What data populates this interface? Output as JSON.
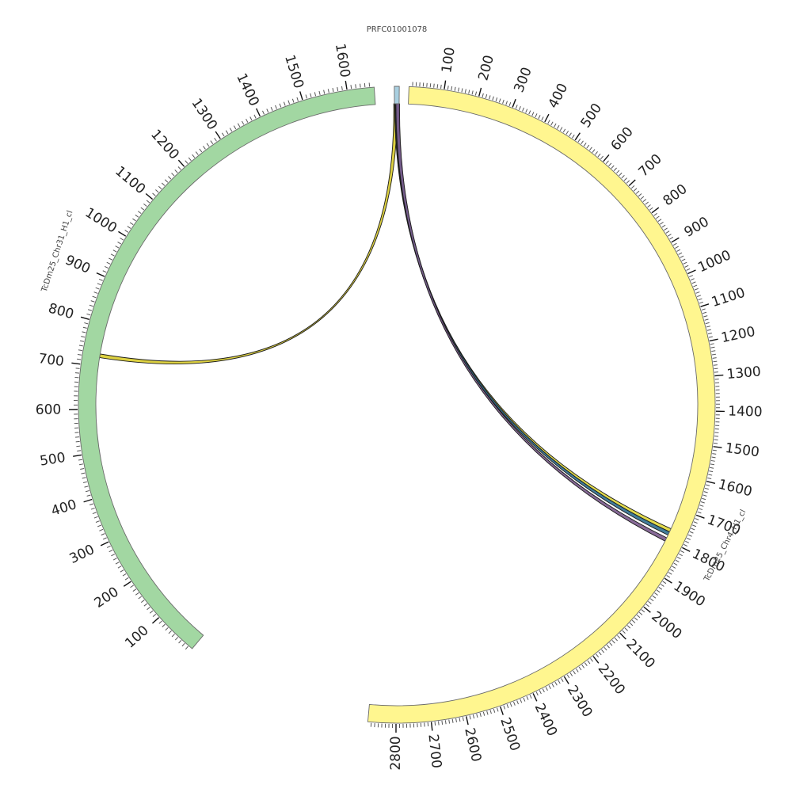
{
  "chart_data": {
    "type": "circos",
    "chromosomes": [
      {
        "id": "chr4",
        "label": "TcDm25_Chr4_H1_cl",
        "length": 2880,
        "color": "#fff68f",
        "tick_labels": [
          "100",
          "200",
          "300",
          "400",
          "500",
          "600",
          "700",
          "800",
          "900",
          "1000",
          "1100",
          "1200",
          "1300",
          "1400",
          "1500",
          "1600",
          "1700",
          "1800",
          "1900",
          "2000",
          "2100",
          "2200",
          "2300",
          "2400",
          "2500",
          "2600",
          "2700",
          "2800"
        ]
      },
      {
        "id": "chr31",
        "label": "TcDm25_Chr31_H1_cl",
        "length": 1660,
        "color": "#a2d7a2",
        "tick_labels": [
          "100",
          "200",
          "300",
          "400",
          "500",
          "600",
          "700",
          "800",
          "900",
          "1000",
          "1100",
          "1200",
          "1300",
          "1400",
          "1500",
          "1600"
        ]
      },
      {
        "id": "contig",
        "label": "PRFC01001078",
        "length": 20,
        "color": "#a9cfe0",
        "tick_labels": []
      }
    ],
    "links": [
      {
        "from": "contig",
        "from_pos": 5,
        "to": "chr31",
        "to_pos": 725,
        "color": "#d9cc2c"
      },
      {
        "from": "contig",
        "from_pos": 8,
        "to": "chr4",
        "to_pos": 1770,
        "color": "#e0d83a"
      },
      {
        "from": "contig",
        "from_pos": 11,
        "to": "chr4",
        "to_pos": 1780,
        "color": "#2f6f8f"
      },
      {
        "from": "contig",
        "from_pos": 14,
        "to": "chr4",
        "to_pos": 1800,
        "color": "#7a5a8c"
      }
    ]
  }
}
